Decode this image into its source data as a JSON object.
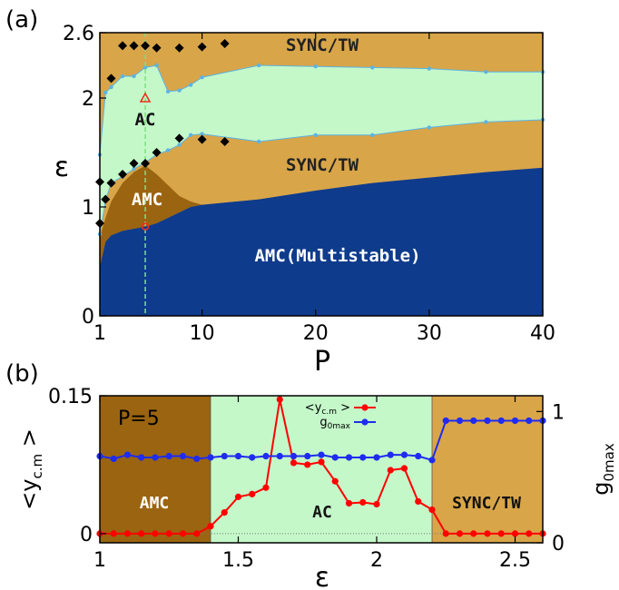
{
  "colors": {
    "amc_multistable": "#0f3b8c",
    "amc": "#9b6410",
    "sync_tw": "#d8a549",
    "ac": "#c4f8c9",
    "boundary_point": "#5db3e3",
    "diamond": "#000000",
    "vline": "#7ee07e",
    "marker_red": "#e8321e",
    "ycm_series": "#ff0000",
    "g0_series": "#1f2cf0"
  },
  "panel_a": {
    "label": "(a)",
    "xlabel": "P",
    "ylabel": "ε",
    "xticks": [
      "1",
      "10",
      "20",
      "30",
      "40"
    ],
    "yticks": [
      "0",
      "1",
      "2",
      "2.6"
    ],
    "regions": {
      "sync_tw_top": "SYNC/TW",
      "ac": "AC",
      "sync_tw_mid": "SYNC/TW",
      "amc": "AMC",
      "amc_multi": "AMC(Multistable)"
    }
  },
  "panel_b": {
    "label": "(b)",
    "xlabel": "ε",
    "ylabel_left": "<y",
    "ylabel_left_sub": "c.m",
    "ylabel_left_end": " >",
    "ylabel_right": "g",
    "ylabel_right_sub": "0max",
    "xticks": [
      "1",
      "1.5",
      "2",
      "2.5"
    ],
    "yticks_left": [
      "0",
      "0.15"
    ],
    "yticks_right": [
      "0",
      "1"
    ],
    "annotation": "P=5",
    "regions": {
      "amc": "AMC",
      "ac": "AC",
      "sync_tw": "SYNC/TW"
    },
    "legend": [
      {
        "text": "<y",
        "sub": "c.m",
        "end": " >"
      },
      {
        "text": "g",
        "sub": "0max",
        "end": ""
      }
    ]
  },
  "chart_data": [
    {
      "type": "area",
      "xlim": [
        1,
        40
      ],
      "ylim": [
        0,
        2.6
      ],
      "x": [
        1,
        1.5,
        2,
        3,
        4,
        5,
        6,
        7,
        8,
        9,
        10,
        15,
        20,
        25,
        30,
        35,
        40
      ],
      "boundary_amcmulti_upper": [
        0.45,
        0.68,
        0.74,
        0.78,
        0.8,
        0.82,
        0.85,
        0.9,
        0.95,
        1.0,
        1.02,
        1.07,
        1.15,
        1.22,
        1.27,
        1.32,
        1.36
      ],
      "boundary_amc_upper": [
        0.72,
        0.9,
        1.05,
        1.22,
        1.32,
        1.38,
        1.3,
        1.2,
        1.1,
        1.05,
        1.02,
        1.07,
        1.15,
        1.22,
        1.27,
        1.32,
        1.36
      ],
      "boundary_sync_lower": [
        0.75,
        1.06,
        1.22,
        1.28,
        1.35,
        1.41,
        1.48,
        1.52,
        1.57,
        1.66,
        1.67,
        1.6,
        1.66,
        1.66,
        1.73,
        1.78,
        1.8
      ],
      "boundary_ac_upper": [
        1.48,
        2.05,
        2.1,
        2.2,
        2.2,
        2.28,
        2.3,
        2.06,
        2.07,
        2.12,
        2.19,
        2.3,
        2.29,
        2.28,
        2.27,
        2.24,
        2.24
      ],
      "diamonds": [
        [
          1,
          0.85
        ],
        [
          1,
          1.23
        ],
        [
          1.5,
          1.07
        ],
        [
          2,
          1.22
        ],
        [
          3,
          1.3
        ],
        [
          4,
          1.4
        ],
        [
          5,
          1.4
        ],
        [
          6,
          1.5
        ],
        [
          8,
          1.63
        ],
        [
          10,
          1.62
        ],
        [
          12,
          1.6
        ],
        [
          2,
          2.18
        ],
        [
          3,
          2.48
        ],
        [
          4,
          2.48
        ],
        [
          5,
          2.48
        ],
        [
          6,
          2.46
        ],
        [
          8,
          2.46
        ],
        [
          10,
          2.47
        ],
        [
          12,
          2.5
        ]
      ],
      "dashed_vline_x": 5,
      "markers": [
        {
          "x": 5,
          "y": 2.0,
          "shape": "triangle"
        },
        {
          "x": 5,
          "y": 0.82,
          "shape": "circle"
        }
      ]
    },
    {
      "type": "line",
      "xlim": [
        1,
        2.6
      ],
      "ylim_left": [
        -0.01,
        0.15
      ],
      "ylim_right": [
        0,
        1.12
      ],
      "region_bounds": [
        1.4,
        2.2
      ],
      "series": [
        {
          "name": "<yc.m >",
          "axis": "left",
          "x": [
            1.0,
            1.05,
            1.1,
            1.15,
            1.2,
            1.25,
            1.3,
            1.35,
            1.4,
            1.45,
            1.5,
            1.55,
            1.6,
            1.65,
            1.7,
            1.75,
            1.8,
            1.85,
            1.9,
            1.95,
            2.0,
            2.05,
            2.1,
            2.15,
            2.2,
            2.25,
            2.3,
            2.35,
            2.4,
            2.45,
            2.5,
            2.55,
            2.6
          ],
          "values": [
            0.0,
            0.0,
            0.0,
            0.0,
            0.0,
            0.0,
            0.0,
            0.0,
            0.008,
            0.023,
            0.04,
            0.043,
            0.05,
            0.146,
            0.077,
            0.075,
            0.078,
            0.057,
            0.033,
            0.034,
            0.032,
            0.069,
            0.071,
            0.035,
            0.026,
            0.0,
            0.0,
            0.0,
            0.0,
            0.0,
            0.0,
            0.0,
            0.0
          ]
        },
        {
          "name": "g0max",
          "axis": "right",
          "x": [
            1.0,
            1.05,
            1.1,
            1.15,
            1.2,
            1.25,
            1.3,
            1.35,
            1.4,
            1.45,
            1.5,
            1.55,
            1.6,
            1.65,
            1.7,
            1.75,
            1.8,
            1.85,
            1.9,
            1.95,
            2.0,
            2.05,
            2.1,
            2.15,
            2.2,
            2.25,
            2.3,
            2.35,
            2.4,
            2.45,
            2.5,
            2.55,
            2.6
          ],
          "values": [
            0.66,
            0.64,
            0.67,
            0.65,
            0.65,
            0.66,
            0.66,
            0.64,
            0.65,
            0.66,
            0.66,
            0.65,
            0.66,
            0.66,
            0.66,
            0.66,
            0.67,
            0.65,
            0.65,
            0.65,
            0.65,
            0.67,
            0.67,
            0.66,
            0.63,
            0.93,
            0.93,
            0.93,
            0.93,
            0.93,
            0.93,
            0.93,
            0.93
          ]
        }
      ]
    }
  ]
}
